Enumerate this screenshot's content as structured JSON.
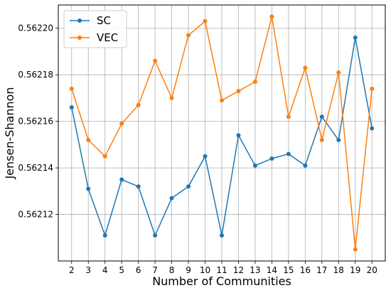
{
  "chart_data": {
    "type": "line",
    "title": "",
    "xlabel": "Number of Communities",
    "ylabel": "Jensen-Shannon",
    "x": [
      2,
      3,
      4,
      5,
      6,
      7,
      8,
      9,
      10,
      11,
      12,
      13,
      14,
      15,
      16,
      17,
      18,
      19,
      20
    ],
    "xlim": [
      1.2,
      20.8
    ],
    "ylim": [
      0.5621,
      0.56221
    ],
    "yticks": [
      0.56212,
      0.56214,
      0.56216,
      0.56218,
      0.5622
    ],
    "ytick_labels": [
      "0.56212",
      "0.56214",
      "0.56216",
      "0.56218",
      "0.56220"
    ],
    "grid": true,
    "legend_position": "top-left",
    "series": [
      {
        "name": "SC",
        "color": "#1f77b4",
        "values": [
          0.562166,
          0.562131,
          0.562111,
          0.562135,
          0.562132,
          0.562111,
          0.562127,
          0.562132,
          0.562145,
          0.562111,
          0.562154,
          0.562141,
          0.562144,
          0.562146,
          0.562141,
          0.562162,
          0.562152,
          0.562196,
          0.562157
        ]
      },
      {
        "name": "VEC",
        "color": "#ff7f0e",
        "values": [
          0.562174,
          0.562152,
          0.562145,
          0.562159,
          0.562167,
          0.562186,
          0.56217,
          0.562197,
          0.562203,
          0.562169,
          0.562173,
          0.562177,
          0.562205,
          0.562162,
          0.562183,
          0.562152,
          0.562181,
          0.562105,
          0.562174
        ]
      }
    ]
  }
}
